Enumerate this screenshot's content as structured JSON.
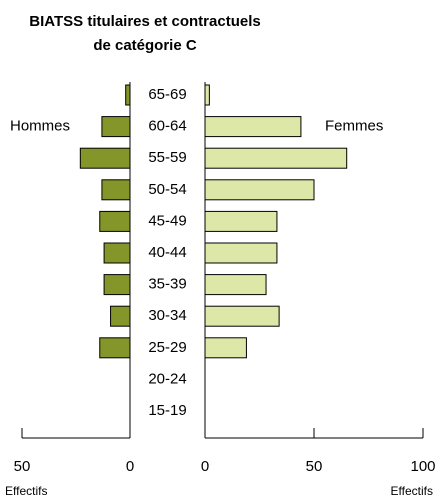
{
  "chart_data": {
    "type": "pyramid",
    "title": [
      "BIATSS titulaires et contractuels",
      "de catégorie C"
    ],
    "categories": [
      "65-69",
      "60-64",
      "55-59",
      "50-54",
      "45-49",
      "40-44",
      "35-39",
      "30-34",
      "25-29",
      "20-24",
      "15-19"
    ],
    "series": [
      {
        "name": "Hommes",
        "color": "#84962a",
        "side": "left",
        "xlim": [
          0,
          50
        ],
        "xticks": [
          50,
          0
        ],
        "xlabel": "Effectifs",
        "values": [
          2,
          13,
          23,
          13,
          14,
          12,
          12,
          9,
          14,
          0,
          0
        ]
      },
      {
        "name": "Femmes",
        "color": "#dde8a8",
        "side": "right",
        "xlim": [
          0,
          100
        ],
        "xticks": [
          0,
          50,
          100
        ],
        "xlabel": "Effectifs",
        "values": [
          2,
          44,
          65,
          50,
          33,
          33,
          28,
          34,
          19,
          0,
          0
        ]
      }
    ]
  }
}
